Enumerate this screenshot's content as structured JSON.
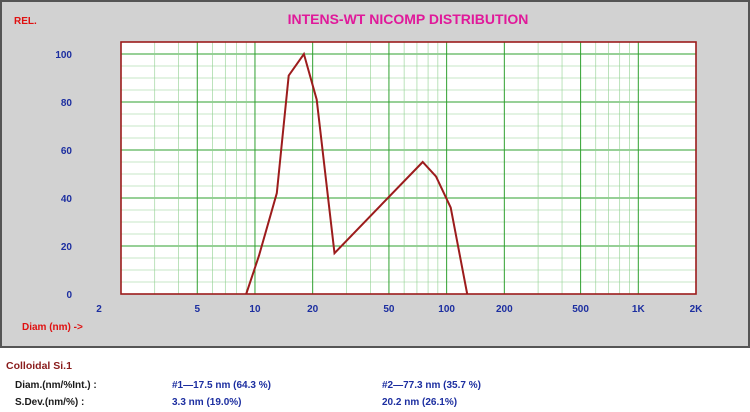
{
  "chart_data": {
    "type": "line",
    "title": "INTENS-WT NICOMP DISTRIBUTION",
    "ylabel": "REL.",
    "xlabel": "Diam (nm) ->",
    "x_scale": "log",
    "xlim": [
      2,
      2000
    ],
    "ylim": [
      0,
      105
    ],
    "yticks": [
      0,
      20,
      40,
      60,
      80,
      100
    ],
    "xtick_values": [
      2,
      5,
      10,
      20,
      50,
      100,
      200,
      500,
      1000,
      2000
    ],
    "xtick_labels": [
      "2",
      "5",
      "10",
      "20",
      "50",
      "100",
      "200",
      "500",
      "1K",
      "2K"
    ],
    "grid": true,
    "series": [
      {
        "color": "#9c1c1c",
        "x": [
          9.0,
          10.5,
          13.0,
          15.0,
          18.0,
          21.0,
          26.0,
          75.0,
          88.0,
          105.0,
          128.0
        ],
        "y": [
          0,
          16,
          42,
          91,
          100,
          81,
          17,
          55,
          49,
          36,
          0
        ]
      }
    ]
  },
  "sample": {
    "name": "Colloidal Si.1"
  },
  "results": {
    "diam_label": "Diam.(nm/%Int.) :",
    "sdev_label": "S.Dev.(nm/%) :",
    "peak1_diam": "#1—17.5 nm (64.3 %)",
    "peak2_diam": "#2—77.3 nm (35.7 %)",
    "peak1_sdev": "3.3 nm (19.0%)",
    "peak2_sdev": "20.2 nm (26.1%)"
  }
}
